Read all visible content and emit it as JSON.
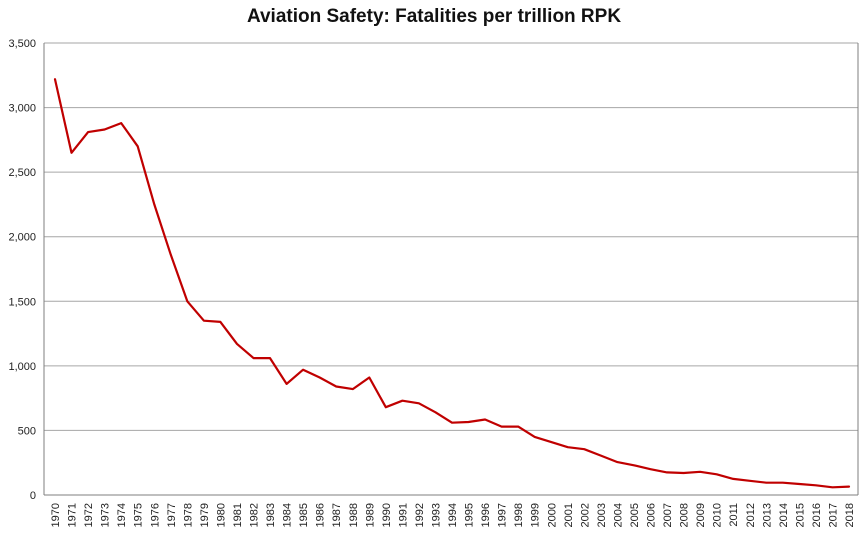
{
  "chart_data": {
    "type": "line",
    "title": "Aviation Safety: Fatalities per trillion RPK",
    "xlabel": "",
    "ylabel": "",
    "ylim": [
      0,
      3500
    ],
    "yticks": [
      0,
      500,
      1000,
      1500,
      2000,
      2500,
      3000,
      3500
    ],
    "ytick_labels": [
      "0",
      "500",
      "1,000",
      "1,500",
      "2,000",
      "2,500",
      "3,000",
      "3,500"
    ],
    "grid": "horizontal",
    "legend": "none",
    "x": [
      "1970",
      "1971",
      "1972",
      "1973",
      "1974",
      "1975",
      "1976",
      "1977",
      "1978",
      "1979",
      "1980",
      "1981",
      "1982",
      "1983",
      "1984",
      "1985",
      "1986",
      "1987",
      "1988",
      "1989",
      "1990",
      "1991",
      "1992",
      "1993",
      "1994",
      "1995",
      "1996",
      "1997",
      "1998",
      "1999",
      "2000",
      "2001",
      "2002",
      "2003",
      "2004",
      "2005",
      "2006",
      "2007",
      "2008",
      "2009",
      "2010",
      "2011",
      "2012",
      "2013",
      "2014",
      "2015",
      "2016",
      "2017",
      "2018"
    ],
    "series": [
      {
        "color": "#c00000",
        "values": [
          3220,
          2650,
          2810,
          2830,
          2880,
          2700,
          2250,
          1860,
          1500,
          1350,
          1340,
          1170,
          1060,
          1060,
          860,
          970,
          910,
          840,
          820,
          910,
          680,
          730,
          710,
          640,
          560,
          565,
          585,
          530,
          530,
          450,
          410,
          370,
          355,
          305,
          255,
          230,
          200,
          175,
          170,
          180,
          160,
          125,
          110,
          95,
          95,
          85,
          75,
          60,
          65
        ]
      }
    ]
  }
}
